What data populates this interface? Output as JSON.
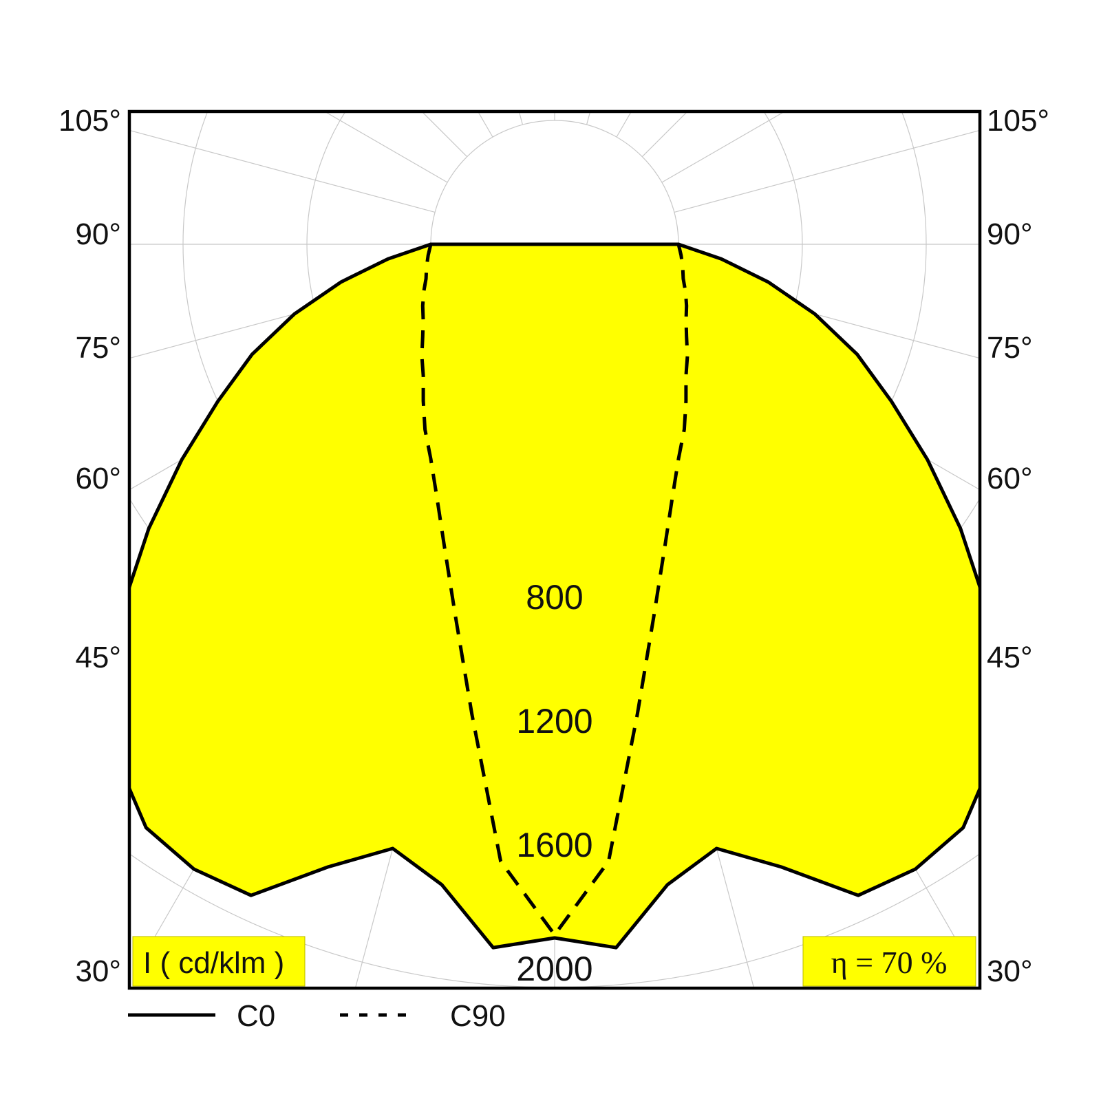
{
  "chart_data": {
    "type": "polar",
    "unit_label": "I ( cd/klm )",
    "efficiency_label": "η = 70 %",
    "angle_tick_labels_left": [
      "105°",
      "90°",
      "75°",
      "60°",
      "45°",
      "30°"
    ],
    "angle_tick_labels_right": [
      "105°",
      "90°",
      "75°",
      "60°",
      "45°",
      "30°"
    ],
    "radial_tick_labels": [
      "800",
      "1200",
      "1600",
      "2000"
    ],
    "radial_ticks": [
      800,
      1200,
      1600,
      2000
    ],
    "radial_offset": 400,
    "rlim": [
      0,
      2000
    ],
    "grid": true,
    "fill_color": "#ffff00",
    "series": [
      {
        "name": "C0",
        "line_style": "solid",
        "angles_deg": [
          0,
          5,
          10,
          15,
          20,
          25,
          30,
          35,
          40,
          45,
          50,
          55,
          60,
          65,
          70,
          75,
          80,
          85,
          90
        ],
        "values": [
          1840,
          1880,
          1700,
          1620,
          1740,
          1920,
          1930,
          1900,
          1790,
          1620,
          1420,
          1200,
          990,
          800,
          640,
          470,
          300,
          140,
          0
        ]
      },
      {
        "name": "C90",
        "line_style": "dashed",
        "angles_deg": [
          0,
          5,
          10,
          15,
          20,
          25,
          30,
          35,
          40,
          45,
          50,
          55,
          60,
          65,
          70,
          75,
          80,
          85,
          90
        ],
        "values": [
          1830,
          1600,
          1140,
          840,
          640,
          500,
          400,
          330,
          260,
          200,
          160,
          120,
          90,
          70,
          50,
          30,
          20,
          10,
          0
        ]
      }
    ]
  }
}
